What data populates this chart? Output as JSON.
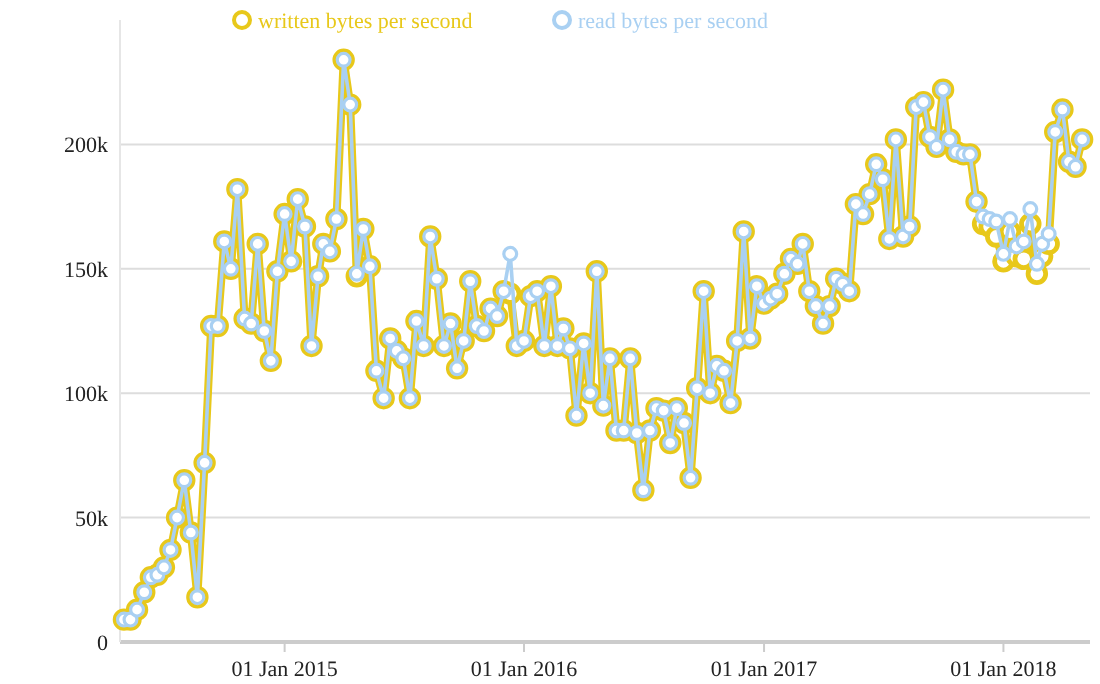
{
  "chart_data": {
    "type": "line",
    "x": [
      "2014-05-01",
      "2014-05-11",
      "2014-05-21",
      "2014-06-01",
      "2014-06-11",
      "2014-06-21",
      "2014-07-01",
      "2014-07-11",
      "2014-07-21",
      "2014-08-01",
      "2014-08-11",
      "2014-08-21",
      "2014-09-01",
      "2014-09-11",
      "2014-09-21",
      "2014-10-01",
      "2014-10-11",
      "2014-10-21",
      "2014-11-01",
      "2014-11-11",
      "2014-11-21",
      "2014-12-01",
      "2014-12-11",
      "2014-12-21",
      "2015-01-01",
      "2015-01-11",
      "2015-01-21",
      "2015-02-01",
      "2015-02-11",
      "2015-02-21",
      "2015-03-01",
      "2015-03-11",
      "2015-03-21",
      "2015-04-01",
      "2015-04-11",
      "2015-04-21",
      "2015-05-01",
      "2015-05-11",
      "2015-05-21",
      "2015-06-01",
      "2015-06-11",
      "2015-06-21",
      "2015-07-01",
      "2015-07-11",
      "2015-07-21",
      "2015-08-01",
      "2015-08-11",
      "2015-08-21",
      "2015-09-01",
      "2015-09-11",
      "2015-09-21",
      "2015-10-01",
      "2015-10-11",
      "2015-10-21",
      "2015-11-01",
      "2015-11-11",
      "2015-11-21",
      "2015-12-01",
      "2015-12-11",
      "2015-12-21",
      "2016-01-01",
      "2016-01-11",
      "2016-01-21",
      "2016-02-01",
      "2016-02-11",
      "2016-02-21",
      "2016-03-01",
      "2016-03-11",
      "2016-03-21",
      "2016-04-01",
      "2016-04-11",
      "2016-04-21",
      "2016-05-01",
      "2016-05-11",
      "2016-05-21",
      "2016-06-01",
      "2016-06-11",
      "2016-06-21",
      "2016-07-01",
      "2016-07-11",
      "2016-07-21",
      "2016-08-01",
      "2016-08-11",
      "2016-08-21",
      "2016-09-01",
      "2016-09-11",
      "2016-09-21",
      "2016-10-01",
      "2016-10-11",
      "2016-10-21",
      "2016-11-01",
      "2016-11-11",
      "2016-11-21",
      "2016-12-01",
      "2016-12-11",
      "2016-12-21",
      "2017-01-01",
      "2017-01-11",
      "2017-01-21",
      "2017-02-01",
      "2017-02-11",
      "2017-02-21",
      "2017-03-01",
      "2017-03-11",
      "2017-03-21",
      "2017-04-01",
      "2017-04-11",
      "2017-04-21",
      "2017-05-01",
      "2017-05-11",
      "2017-05-21",
      "2017-06-01",
      "2017-06-11",
      "2017-06-21",
      "2017-07-01",
      "2017-07-11",
      "2017-07-21",
      "2017-08-01",
      "2017-08-11",
      "2017-08-21",
      "2017-09-01",
      "2017-09-11",
      "2017-09-21",
      "2017-10-01",
      "2017-10-11",
      "2017-10-21",
      "2017-11-01",
      "2017-11-11",
      "2017-11-21",
      "2017-12-01",
      "2017-12-11",
      "2017-12-21",
      "2018-01-01",
      "2018-01-11",
      "2018-01-21",
      "2018-02-01",
      "2018-02-11",
      "2018-02-21",
      "2018-03-01",
      "2018-03-11",
      "2018-03-21",
      "2018-04-01",
      "2018-04-11",
      "2018-04-21",
      "2018-05-01"
    ],
    "series": [
      {
        "name": "written bytes per second",
        "color": "#e8c81a",
        "values": [
          9000,
          9000,
          13000,
          20000,
          26000,
          27000,
          30000,
          37000,
          50000,
          65000,
          44000,
          18000,
          72000,
          127000,
          127000,
          161000,
          150000,
          182000,
          130000,
          128000,
          160000,
          125000,
          113000,
          149000,
          172000,
          153000,
          178000,
          167000,
          119000,
          147000,
          160000,
          157000,
          170000,
          234000,
          216000,
          147000,
          166000,
          151000,
          109000,
          98000,
          122000,
          117000,
          114000,
          98000,
          129000,
          119000,
          163000,
          146000,
          119000,
          128000,
          110000,
          121000,
          145000,
          127000,
          125000,
          134000,
          131000,
          141000,
          140000,
          119000,
          121000,
          139000,
          141000,
          119000,
          143000,
          119000,
          126000,
          118000,
          91000,
          120000,
          100000,
          149000,
          95000,
          114000,
          85000,
          85000,
          114000,
          84000,
          61000,
          85000,
          94000,
          93000,
          80000,
          94000,
          88000,
          66000,
          102000,
          141000,
          100000,
          111000,
          109000,
          96000,
          121000,
          165000,
          122000,
          143000,
          136000,
          138000,
          140000,
          148000,
          154000,
          152000,
          160000,
          141000,
          135000,
          128000,
          135000,
          146000,
          144000,
          141000,
          176000,
          172000,
          180000,
          192000,
          186000,
          162000,
          202000,
          163000,
          167000,
          215000,
          217000,
          203000,
          199000,
          222000,
          202000,
          197000,
          196000,
          196000,
          177000,
          168000,
          167000,
          163000,
          153000,
          165000,
          155000,
          154000,
          168000,
          148000,
          155000,
          160000,
          205000,
          214000,
          193000,
          191000,
          202000
        ]
      },
      {
        "name": "read bytes per second",
        "color": "#a9d0f2",
        "values": [
          9000,
          9000,
          13000,
          20000,
          26000,
          27000,
          30000,
          37000,
          50000,
          65000,
          44000,
          18000,
          72000,
          127000,
          127000,
          161000,
          150000,
          182000,
          130000,
          128000,
          160000,
          125000,
          113000,
          149000,
          172000,
          153000,
          178000,
          167000,
          119000,
          147000,
          160000,
          157000,
          170000,
          234000,
          216000,
          148000,
          166000,
          151000,
          109000,
          98000,
          122000,
          117000,
          114000,
          98000,
          129000,
          119000,
          163000,
          146000,
          119000,
          128000,
          110000,
          121000,
          145000,
          127000,
          125000,
          134000,
          131000,
          141000,
          156000,
          119000,
          121000,
          139000,
          141000,
          119000,
          143000,
          119000,
          126000,
          118000,
          91000,
          120000,
          100000,
          149000,
          95000,
          114000,
          85000,
          85000,
          114000,
          84000,
          61000,
          85000,
          94000,
          93000,
          80000,
          94000,
          88000,
          66000,
          102000,
          141000,
          100000,
          111000,
          109000,
          96000,
          121000,
          165000,
          122000,
          143000,
          136000,
          138000,
          140000,
          148000,
          154000,
          152000,
          160000,
          141000,
          135000,
          128000,
          135000,
          146000,
          144000,
          141000,
          176000,
          172000,
          180000,
          192000,
          186000,
          162000,
          202000,
          163000,
          167000,
          215000,
          217000,
          203000,
          199000,
          222000,
          202000,
          197000,
          196000,
          196000,
          177000,
          171000,
          170000,
          169000,
          156000,
          170000,
          159000,
          161000,
          174000,
          152000,
          160000,
          164000,
          205000,
          214000,
          193000,
          191000,
          202000
        ]
      }
    ],
    "xlim": [
      "2014-04-25",
      "2018-05-13"
    ],
    "xticks": [
      {
        "value": "2015-01-01",
        "label": "01 Jan 2015"
      },
      {
        "value": "2016-01-01",
        "label": "01 Jan 2016"
      },
      {
        "value": "2017-01-01",
        "label": "01 Jan 2017"
      },
      {
        "value": "2018-01-01",
        "label": "01 Jan 2018"
      }
    ],
    "ylim": [
      0,
      250000
    ],
    "yticks": [
      0,
      {
        "value": 50000,
        "label": "50k"
      },
      {
        "value": 100000,
        "label": "100k"
      },
      {
        "value": 150000,
        "label": "150k"
      },
      {
        "value": 200000,
        "label": "200k"
      }
    ],
    "grid": "y",
    "legend": "top",
    "marker": "circle",
    "line_style": "solid"
  }
}
